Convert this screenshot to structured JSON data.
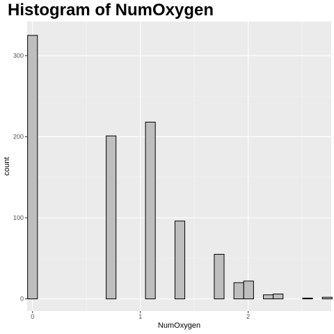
{
  "chart_data": {
    "type": "bar",
    "title": "Histogram of NumOxygen",
    "xlabel": "NumOxygen",
    "ylabel": "count",
    "xlim": [
      -0.05,
      2.77
    ],
    "ylim": [
      -15,
      342
    ],
    "x_ticks": [
      0,
      1,
      2
    ],
    "x_tick_labels": [
      "0",
      "1",
      "2"
    ],
    "y_ticks": [
      0,
      100,
      200,
      300
    ],
    "y_tick_labels": [
      "0",
      "100",
      "200",
      "300"
    ],
    "x_minor_ticks": [
      0.5,
      1.5,
      2.5
    ],
    "y_minor_ticks": [
      50,
      150,
      250
    ],
    "bin_width": 0.0911,
    "bin_start": -0.0456,
    "bin_counts": [
      325,
      0,
      0,
      0,
      0,
      0,
      0,
      0,
      201,
      0,
      0,
      0,
      218,
      0,
      0,
      96,
      0,
      0,
      0,
      55,
      0,
      20,
      22,
      0,
      5,
      6,
      0,
      0,
      1,
      0,
      2
    ],
    "grid": true,
    "legend": "none",
    "colors": {
      "panel_background": "#ebebeb",
      "grid_major": "#ffffff",
      "grid_minor": "#f5f5f5",
      "bar_fill": "#bebebe",
      "bar_outline": "#000000"
    }
  }
}
